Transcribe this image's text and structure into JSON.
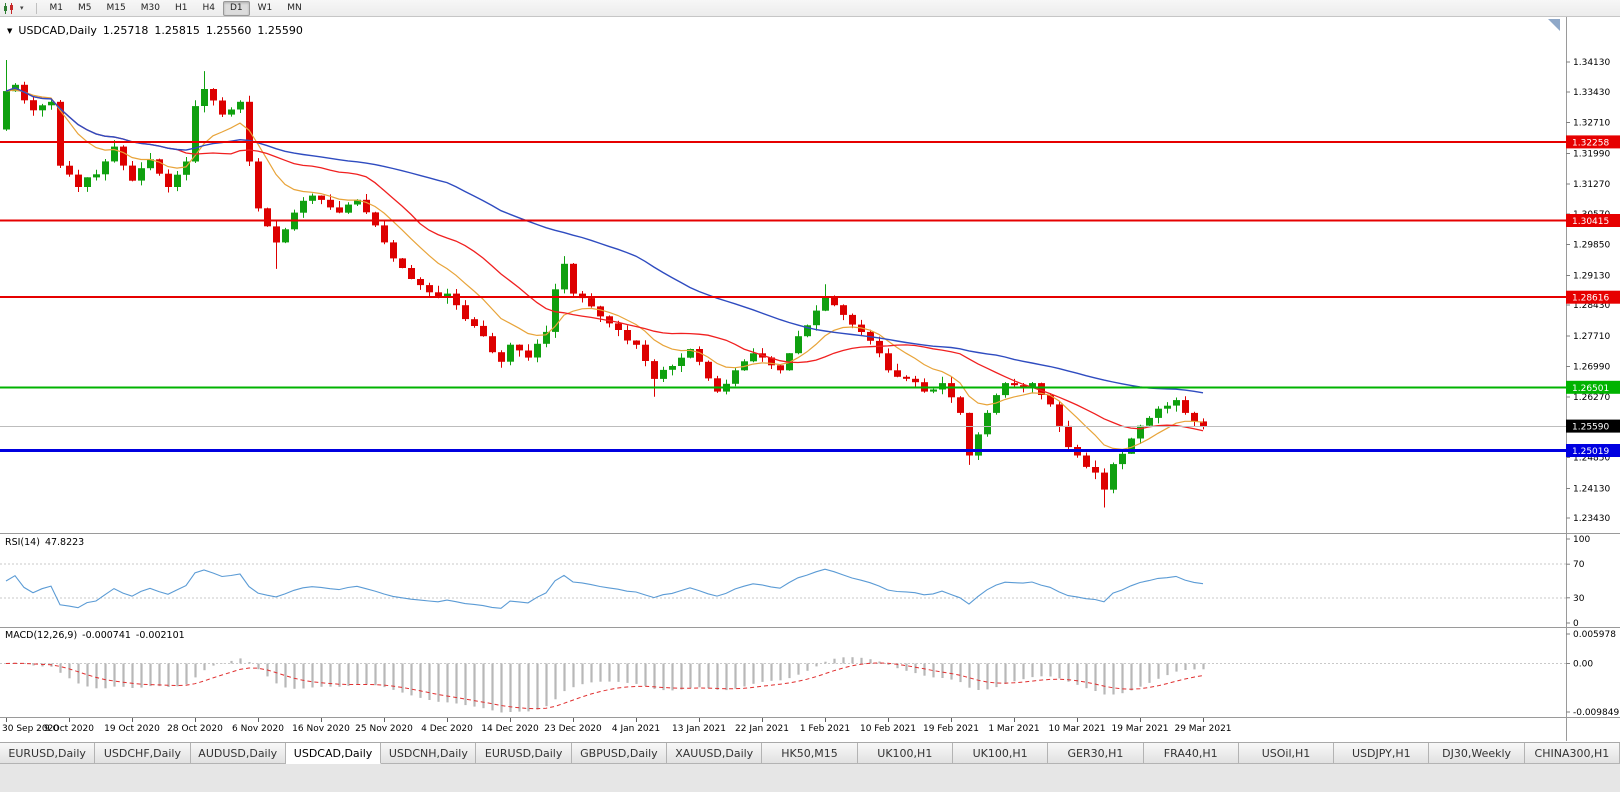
{
  "toolbar": {
    "timeframes": [
      "M1",
      "M5",
      "M15",
      "M30",
      "H1",
      "H4",
      "D1",
      "W1",
      "MN"
    ],
    "active": "D1"
  },
  "chart": {
    "symbol": "USDCAD,Daily",
    "open": "1.25718",
    "high": "1.25815",
    "low": "1.25560",
    "close": "1.25590",
    "price_axis_labels": [
      "1.34130",
      "1.33430",
      "1.32710",
      "1.31990",
      "1.31270",
      "1.30570",
      "1.29850",
      "1.29130",
      "1.28430",
      "1.27710",
      "1.26990",
      "1.26270",
      "1.24850",
      "1.24130",
      "1.23430"
    ],
    "hlines": [
      {
        "label": "1.32258",
        "price": 1.32258,
        "color": "#e60000",
        "width": 2
      },
      {
        "label": "1.30415",
        "price": 1.30415,
        "color": "#e60000",
        "width": 2
      },
      {
        "label": "1.28616",
        "price": 1.28616,
        "color": "#e60000",
        "width": 2
      },
      {
        "label": "1.26501",
        "price": 1.26501,
        "color": "#00b300",
        "width": 2
      },
      {
        "label": "1.25019",
        "price": 1.25019,
        "color": "#0000e0",
        "width": 3
      }
    ],
    "current_price": {
      "label": "1.25590",
      "price": 1.2559,
      "box_color": "#000000"
    },
    "bid_line_color": "#bdbdbd"
  },
  "chart_data": {
    "type": "candlestick",
    "symbol": "USDCAD",
    "timeframe": "Daily",
    "ylim": [
      1.232,
      1.3465
    ],
    "n_candles": 134,
    "last_close": 1.2559,
    "noise": 0.0016,
    "wick": 0.0022,
    "up_color": "#0fa00f",
    "down_color": "#dd0000",
    "anchors": [
      [
        0,
        1.3345
      ],
      [
        1,
        1.336
      ],
      [
        3,
        1.33
      ],
      [
        5,
        1.332
      ],
      [
        6,
        1.317
      ],
      [
        8,
        1.312
      ],
      [
        10,
        1.315
      ],
      [
        12,
        1.3215
      ],
      [
        14,
        1.3135
      ],
      [
        16,
        1.3185
      ],
      [
        18,
        1.312
      ],
      [
        20,
        1.318
      ],
      [
        21,
        1.331
      ],
      [
        22,
        1.335
      ],
      [
        24,
        1.329
      ],
      [
        26,
        1.332
      ],
      [
        27,
        1.318
      ],
      [
        28,
        1.307
      ],
      [
        30,
        1.299
      ],
      [
        32,
        1.306
      ],
      [
        34,
        1.31
      ],
      [
        35,
        1.309
      ],
      [
        37,
        1.306
      ],
      [
        39,
        1.309
      ],
      [
        41,
        1.303
      ],
      [
        42,
        1.299
      ],
      [
        44,
        1.293
      ],
      [
        46,
        1.289
      ],
      [
        48,
        1.286
      ],
      [
        49,
        1.287
      ],
      [
        51,
        1.281
      ],
      [
        53,
        1.277
      ],
      [
        55,
        1.271
      ],
      [
        56,
        1.275
      ],
      [
        58,
        1.272
      ],
      [
        60,
        1.278
      ],
      [
        61,
        1.288
      ],
      [
        62,
        1.294
      ],
      [
        63,
        1.287
      ],
      [
        65,
        1.284
      ],
      [
        67,
        1.28
      ],
      [
        69,
        1.276
      ],
      [
        70,
        1.275
      ],
      [
        72,
        1.267
      ],
      [
        74,
        1.27
      ],
      [
        76,
        1.274
      ],
      [
        77,
        1.271
      ],
      [
        79,
        1.264
      ],
      [
        81,
        1.269
      ],
      [
        83,
        1.273
      ],
      [
        84,
        1.272
      ],
      [
        86,
        1.269
      ],
      [
        88,
        1.277
      ],
      [
        90,
        1.283
      ],
      [
        91,
        1.286
      ],
      [
        93,
        1.282
      ],
      [
        95,
        1.278
      ],
      [
        97,
        1.273
      ],
      [
        98,
        1.269
      ],
      [
        100,
        1.267
      ],
      [
        102,
        1.264
      ],
      [
        104,
        1.266
      ],
      [
        106,
        1.259
      ],
      [
        107,
        1.249
      ],
      [
        109,
        1.259
      ],
      [
        111,
        1.266
      ],
      [
        112,
        1.2655
      ],
      [
        114,
        1.266
      ],
      [
        116,
        1.261
      ],
      [
        118,
        1.251
      ],
      [
        119,
        1.249
      ],
      [
        121,
        1.245
      ],
      [
        122,
        1.241
      ],
      [
        123,
        1.247
      ],
      [
        125,
        1.253
      ],
      [
        126,
        1.256
      ],
      [
        128,
        1.26
      ],
      [
        130,
        1.262
      ],
      [
        131,
        1.259
      ],
      [
        132,
        1.257
      ],
      [
        133,
        1.2559
      ]
    ],
    "wick_marks": {
      "highs": [
        [
          0,
          1.3418
        ],
        [
          22,
          1.3392
        ],
        [
          62,
          1.2958
        ],
        [
          91,
          1.2892
        ]
      ],
      "lows": [
        [
          30,
          1.2928
        ],
        [
          72,
          1.2628
        ],
        [
          107,
          1.2468
        ],
        [
          122,
          1.2368
        ]
      ]
    },
    "date_labels": [
      "30 Sep 2020",
      "9 Oct 2020",
      "19 Oct 2020",
      "28 Oct 2020",
      "6 Nov 2020",
      "16 Nov 2020",
      "25 Nov 2020",
      "4 Dec 2020",
      "14 Dec 2020",
      "23 Dec 2020",
      "4 Jan 2021",
      "13 Jan 2021",
      "22 Jan 2021",
      "1 Feb 2021",
      "10 Feb 2021",
      "19 Feb 2021",
      "1 Mar 2021",
      "10 Mar 2021",
      "19 Mar 2021",
      "29 Mar 2021"
    ],
    "label_every": 7,
    "moving_averages": [
      {
        "name": "fast-ma",
        "type": "ema",
        "period": 10,
        "color": "#e8a43a",
        "width": 1.2
      },
      {
        "name": "mid-ma",
        "type": "sma",
        "period": 20,
        "color": "#f02020",
        "width": 1.3
      },
      {
        "name": "slow-ma",
        "type": "sma",
        "period": 50,
        "color": "#2f4cc0",
        "width": 1.4
      }
    ]
  },
  "rsi": {
    "label": "RSI(14)",
    "value": "47.8223",
    "period": 14,
    "levels": [
      "100",
      "70",
      "30",
      "0"
    ],
    "level_lines": [
      70,
      30
    ],
    "line_color": "#5b9bd5"
  },
  "macd": {
    "label": "MACD(12,26,9)",
    "value_main": "-0.000741",
    "value_signal": "-0.002101",
    "fast": 12,
    "slow": 26,
    "signal": 9,
    "axis_labels": [
      "0.005978",
      "0.00",
      "-0.009849"
    ],
    "axis_max": 0.005978,
    "axis_min": -0.009849,
    "histogram_color": "#b8b8b8",
    "signal_color": "#e03030"
  },
  "tabs": {
    "items": [
      "EURUSD,Daily",
      "USDCHF,Daily",
      "AUDUSD,Daily",
      "USDCAD,Daily",
      "USDCNH,Daily",
      "EURUSD,Daily",
      "GBPUSD,Daily",
      "XAUUSD,Daily",
      "HK50,M15",
      "UK100,H1",
      "UK100,H1",
      "GER30,H1",
      "FRA40,H1",
      "USOil,H1",
      "USDJPY,H1",
      "DJ30,Weekly",
      "CHINA300,H1"
    ],
    "active_index": 3
  }
}
